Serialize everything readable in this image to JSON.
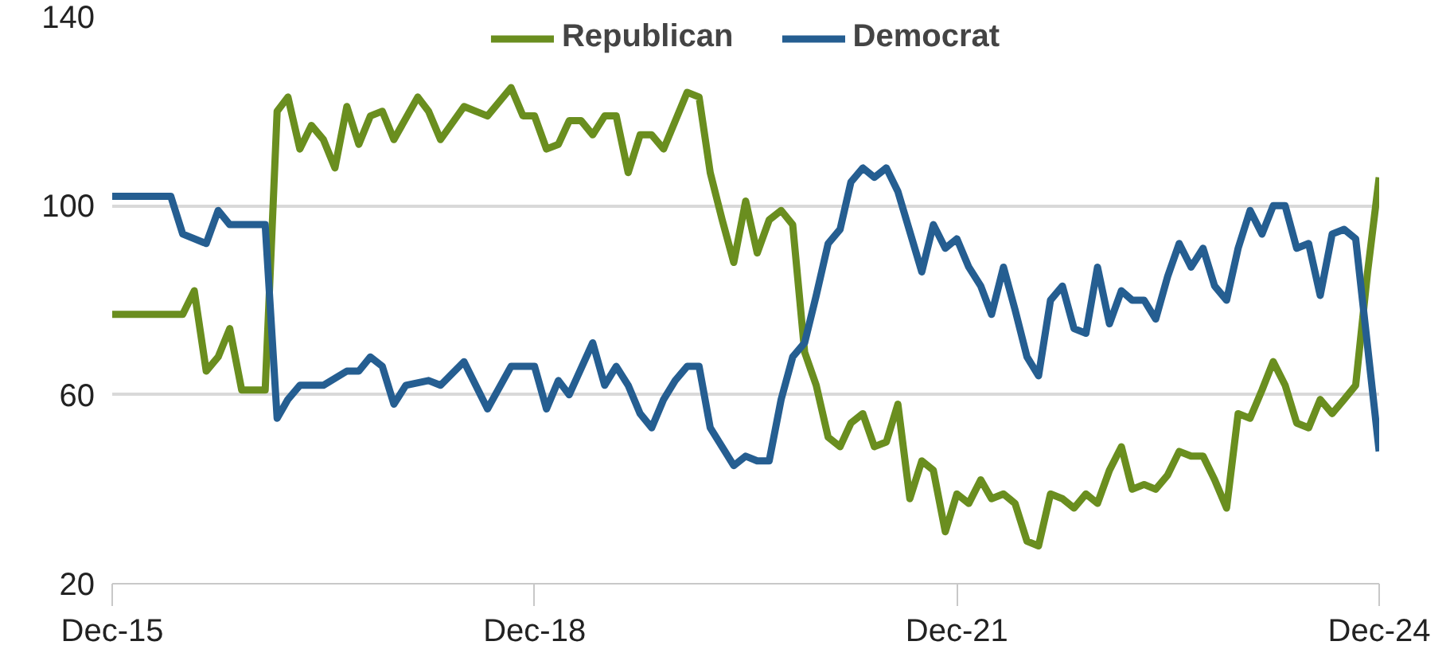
{
  "chart_data": {
    "type": "line",
    "xlim": [
      "2015-12",
      "2024-12"
    ],
    "ylim": [
      20,
      140
    ],
    "yticks": [
      20,
      60,
      100,
      140
    ],
    "xticks": [
      {
        "value": "2015-12",
        "label": "Dec-15"
      },
      {
        "value": "2018-12",
        "label": "Dec-18"
      },
      {
        "value": "2021-12",
        "label": "Dec-21"
      },
      {
        "value": "2024-12",
        "label": "Dec-24"
      }
    ],
    "grid": "y",
    "legend": "top",
    "line_style": "solid",
    "marker": "none",
    "series": [
      {
        "name": "Republican",
        "color": "#6a8e1f",
        "x": [
          "2015-12",
          "2016-06",
          "2016-07",
          "2016-08",
          "2016-09",
          "2016-10",
          "2016-11",
          "2017-01",
          "2017-02",
          "2017-03",
          "2017-04",
          "2017-05",
          "2017-06",
          "2017-07",
          "2017-08",
          "2017-09",
          "2017-10",
          "2017-11",
          "2017-12",
          "2018-02",
          "2018-03",
          "2018-04",
          "2018-06",
          "2018-07",
          "2018-08",
          "2018-10",
          "2018-11",
          "2018-12",
          "2019-01",
          "2019-02",
          "2019-03",
          "2019-04",
          "2019-05",
          "2019-06",
          "2019-07",
          "2019-08",
          "2019-09",
          "2019-10",
          "2019-11",
          "2020-01",
          "2020-02",
          "2020-03",
          "2020-04",
          "2020-05",
          "2020-06",
          "2020-07",
          "2020-08",
          "2020-09",
          "2020-10",
          "2020-11",
          "2020-12",
          "2021-01",
          "2021-02",
          "2021-03",
          "2021-04",
          "2021-05",
          "2021-06",
          "2021-07",
          "2021-08",
          "2021-09",
          "2021-10",
          "2021-11",
          "2021-12",
          "2022-01",
          "2022-02",
          "2022-03",
          "2022-04",
          "2022-05",
          "2022-06",
          "2022-07",
          "2022-08",
          "2022-09",
          "2022-10",
          "2022-11",
          "2022-12",
          "2023-01",
          "2023-02",
          "2023-03",
          "2023-04",
          "2023-05",
          "2023-06",
          "2023-07",
          "2023-08",
          "2023-09",
          "2023-10",
          "2023-11",
          "2023-12",
          "2024-01",
          "2024-02",
          "2024-03",
          "2024-04",
          "2024-05",
          "2024-06",
          "2024-07",
          "2024-08",
          "2024-09",
          "2024-10",
          "2024-11",
          "2024-12"
        ],
        "values": [
          77,
          77,
          82,
          65,
          68,
          74,
          61,
          61,
          120,
          123,
          112,
          117,
          114,
          108,
          121,
          113,
          119,
          120,
          114,
          123,
          120,
          114,
          121,
          120,
          119,
          125,
          119,
          119,
          112,
          113,
          118,
          118,
          115,
          119,
          119,
          107,
          115,
          115,
          112,
          124,
          123,
          107,
          97,
          88,
          101,
          90,
          97,
          99,
          96,
          69,
          62,
          51,
          49,
          54,
          56,
          49,
          50,
          58,
          38,
          46,
          44,
          31,
          39,
          37,
          42,
          38,
          39,
          37,
          29,
          28,
          39,
          38,
          36,
          39,
          37,
          44,
          49,
          40,
          41,
          40,
          43,
          48,
          47,
          47,
          42,
          36,
          56,
          55,
          61,
          67,
          62,
          54,
          53,
          59,
          56,
          59,
          62,
          86,
          106
        ]
      },
      {
        "name": "Democrat",
        "color": "#255e91",
        "x": [
          "2015-12",
          "2016-05",
          "2016-06",
          "2016-08",
          "2016-09",
          "2016-10",
          "2017-01",
          "2017-02",
          "2017-03",
          "2017-04",
          "2017-05",
          "2017-06",
          "2017-08",
          "2017-09",
          "2017-10",
          "2017-11",
          "2017-12",
          "2018-01",
          "2018-03",
          "2018-04",
          "2018-06",
          "2018-08",
          "2018-10",
          "2018-12",
          "2019-01",
          "2019-02",
          "2019-03",
          "2019-05",
          "2019-06",
          "2019-07",
          "2019-08",
          "2019-09",
          "2019-10",
          "2019-11",
          "2019-12",
          "2020-01",
          "2020-02",
          "2020-03",
          "2020-05",
          "2020-06",
          "2020-07",
          "2020-08",
          "2020-09",
          "2020-10",
          "2020-11",
          "2020-12",
          "2021-01",
          "2021-02",
          "2021-03",
          "2021-04",
          "2021-05",
          "2021-06",
          "2021-07",
          "2021-09",
          "2021-10",
          "2021-11",
          "2021-12",
          "2022-01",
          "2022-02",
          "2022-03",
          "2022-04",
          "2022-05",
          "2022-06",
          "2022-07",
          "2022-08",
          "2022-09",
          "2022-10",
          "2022-11",
          "2022-12",
          "2023-01",
          "2023-02",
          "2023-03",
          "2023-04",
          "2023-05",
          "2023-06",
          "2023-07",
          "2023-08",
          "2023-09",
          "2023-10",
          "2023-11",
          "2023-12",
          "2024-01",
          "2024-02",
          "2024-03",
          "2024-04",
          "2024-05",
          "2024-06",
          "2024-07",
          "2024-08",
          "2024-09",
          "2024-10",
          "2024-12"
        ],
        "values": [
          102,
          102,
          94,
          92,
          99,
          96,
          96,
          55,
          59,
          62,
          62,
          62,
          65,
          65,
          68,
          66,
          58,
          62,
          63,
          62,
          67,
          57,
          66,
          66,
          57,
          63,
          60,
          71,
          62,
          66,
          62,
          56,
          53,
          59,
          63,
          66,
          66,
          53,
          45,
          47,
          46,
          46,
          59,
          68,
          71,
          81,
          92,
          95,
          105,
          108,
          106,
          108,
          103,
          86,
          96,
          91,
          93,
          87,
          83,
          77,
          87,
          78,
          68,
          64,
          80,
          83,
          74,
          73,
          87,
          75,
          82,
          80,
          80,
          76,
          85,
          92,
          87,
          91,
          83,
          80,
          91,
          99,
          94,
          100,
          100,
          91,
          92,
          81,
          94,
          95,
          93,
          48
        ]
      }
    ]
  }
}
